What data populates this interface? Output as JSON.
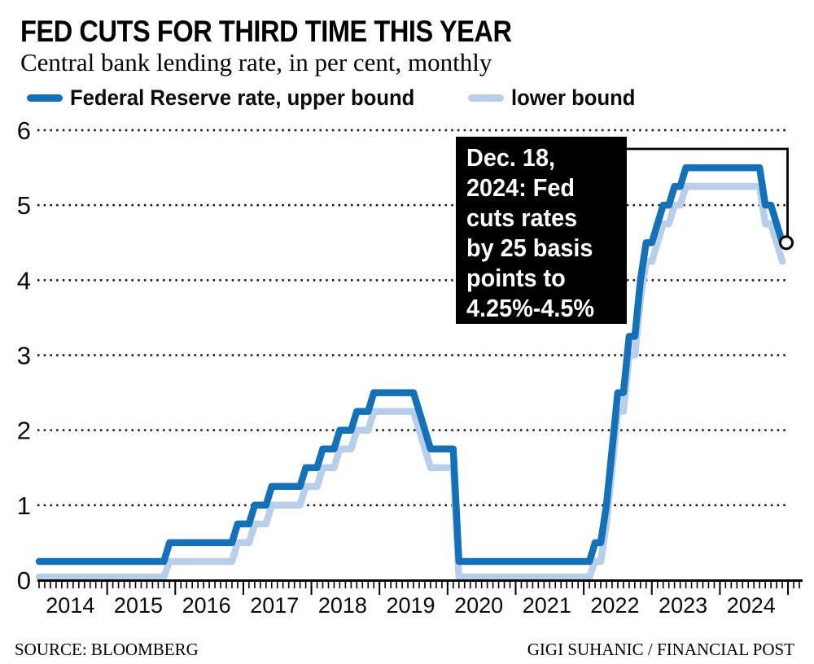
{
  "header": {
    "title": "FED CUTS FOR THIRD TIME THIS YEAR",
    "subtitle": "Central bank lending rate, in per cent, monthly"
  },
  "legend": [
    {
      "label": "Federal Reserve rate, upper bound",
      "color": "#1471b8"
    },
    {
      "label": "lower bound",
      "color": "#b9cee8"
    }
  ],
  "annotation": {
    "bg": "#000000",
    "text_color": "#ffffff",
    "lines": [
      "Dec. 18,",
      "2024: Fed",
      "cuts rates",
      "by 25 basis",
      "points to",
      "4.25%-4.5%"
    ]
  },
  "footer": {
    "source": "SOURCE: BLOOMBERG",
    "credit": "GIGI SUHANIC / FINANCIAL POST"
  },
  "chart_data": {
    "type": "line",
    "title": "FED CUTS FOR THIRD TIME THIS YEAR",
    "subtitle": "Central bank lending rate, in per cent, monthly",
    "x_unit": "month",
    "x_start": "2014-01",
    "x_end": "2024-12",
    "ylim": [
      0,
      6
    ],
    "yticks": [
      0,
      1,
      2,
      3,
      4,
      5,
      6
    ],
    "xticks": [
      2014,
      2015,
      2016,
      2017,
      2018,
      2019,
      2020,
      2021,
      2022,
      2023,
      2024
    ],
    "grid": "dotted-horizontal",
    "legend_position": "top",
    "axis_color": "#000000",
    "series": [
      {
        "name": "Federal Reserve rate, upper bound",
        "color": "#1471b8",
        "changes": [
          [
            "2014-01",
            0.25
          ],
          [
            "2015-12",
            0.5
          ],
          [
            "2016-12",
            0.75
          ],
          [
            "2017-03",
            1.0
          ],
          [
            "2017-06",
            1.25
          ],
          [
            "2017-12",
            1.5
          ],
          [
            "2018-03",
            1.75
          ],
          [
            "2018-06",
            2.0
          ],
          [
            "2018-09",
            2.25
          ],
          [
            "2018-12",
            2.5
          ],
          [
            "2019-08",
            2.25
          ],
          [
            "2019-09",
            2.0
          ],
          [
            "2019-10",
            1.75
          ],
          [
            "2020-03",
            0.25
          ],
          [
            "2022-03",
            0.5
          ],
          [
            "2022-05",
            1.0
          ],
          [
            "2022-06",
            1.75
          ],
          [
            "2022-07",
            2.5
          ],
          [
            "2022-09",
            3.25
          ],
          [
            "2022-11",
            4.0
          ],
          [
            "2022-12",
            4.5
          ],
          [
            "2023-02",
            4.75
          ],
          [
            "2023-03",
            5.0
          ],
          [
            "2023-05",
            5.25
          ],
          [
            "2023-07",
            5.5
          ],
          [
            "2024-09",
            5.0
          ],
          [
            "2024-11",
            4.75
          ],
          [
            "2024-12",
            4.5
          ]
        ]
      },
      {
        "name": "lower bound",
        "color": "#b9cee8",
        "changes": [
          [
            "2014-01",
            0.0
          ],
          [
            "2015-12",
            0.25
          ],
          [
            "2016-12",
            0.5
          ],
          [
            "2017-03",
            0.75
          ],
          [
            "2017-06",
            1.0
          ],
          [
            "2017-12",
            1.25
          ],
          [
            "2018-03",
            1.5
          ],
          [
            "2018-06",
            1.75
          ],
          [
            "2018-09",
            2.0
          ],
          [
            "2018-12",
            2.25
          ],
          [
            "2019-08",
            2.0
          ],
          [
            "2019-09",
            1.75
          ],
          [
            "2019-10",
            1.5
          ],
          [
            "2020-03",
            0.0
          ],
          [
            "2022-03",
            0.25
          ],
          [
            "2022-05",
            0.75
          ],
          [
            "2022-06",
            1.5
          ],
          [
            "2022-07",
            2.25
          ],
          [
            "2022-09",
            3.0
          ],
          [
            "2022-11",
            3.75
          ],
          [
            "2022-12",
            4.25
          ],
          [
            "2023-02",
            4.5
          ],
          [
            "2023-03",
            4.75
          ],
          [
            "2023-05",
            5.0
          ],
          [
            "2023-07",
            5.25
          ],
          [
            "2024-09",
            4.75
          ],
          [
            "2024-11",
            4.5
          ],
          [
            "2024-12",
            4.25
          ]
        ]
      }
    ],
    "end_marker": {
      "series": "Federal Reserve rate, upper bound",
      "date": "2024-12",
      "value": 4.5
    }
  }
}
